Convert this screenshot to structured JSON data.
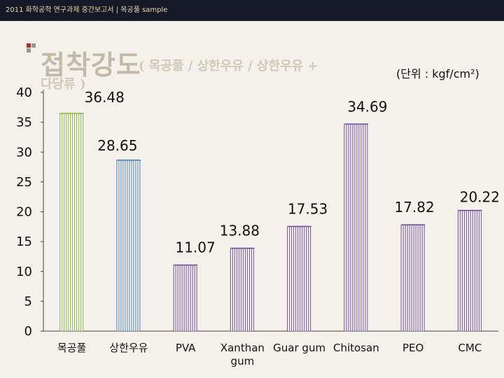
{
  "header": {
    "banner_text": "2011 화학공학 연구과제 중간보고서 | 목공풀 sample"
  },
  "title": {
    "main": "접착강도",
    "sub_line1": "( 목공풀 / 상한우유 / 상한우유 +",
    "sub_line2": "다당류 )",
    "unit": "(단위 : kgf/cm²)"
  },
  "colors": {
    "bullet_red": "#b02a2a",
    "bullet_gray": "#9a968e",
    "bar_green": "#8db04a",
    "bar_blue": "#4a77b4",
    "bar_purple": "#6a4a9a",
    "axis": "#444444"
  },
  "chart_data": {
    "type": "bar",
    "categories": [
      "목공풀",
      "상한우유",
      "PVA",
      "Xanthan gum",
      "Guar gum",
      "Chitosan",
      "PEO",
      "CMC"
    ],
    "category_lines": [
      [
        "목공풀"
      ],
      [
        "상한우유"
      ],
      [
        "PVA"
      ],
      [
        "Xanthan",
        "gum"
      ],
      [
        "Guar gum"
      ],
      [
        "Chitosan"
      ],
      [
        "PEO"
      ],
      [
        "CMC"
      ]
    ],
    "values": [
      36.48,
      28.65,
      11.07,
      13.88,
      17.53,
      34.69,
      17.82,
      20.22
    ],
    "value_labels": [
      "36.48",
      "28.65",
      "11.07",
      "13.88",
      "17.53",
      "34.69",
      "17.82",
      "20.22"
    ],
    "bar_colors": [
      "#8db04a",
      "#4a77b4",
      "#6a4a9a",
      "#6a4a9a",
      "#6a4a9a",
      "#6a4a9a",
      "#6a4a9a",
      "#6a4a9a"
    ],
    "yticks": [
      "0",
      "5",
      "10",
      "15",
      "20",
      "25",
      "30",
      "35",
      "40"
    ],
    "ylim": [
      0,
      40
    ],
    "title": "접착강도",
    "xlabel": "",
    "ylabel": "",
    "grid": false
  }
}
